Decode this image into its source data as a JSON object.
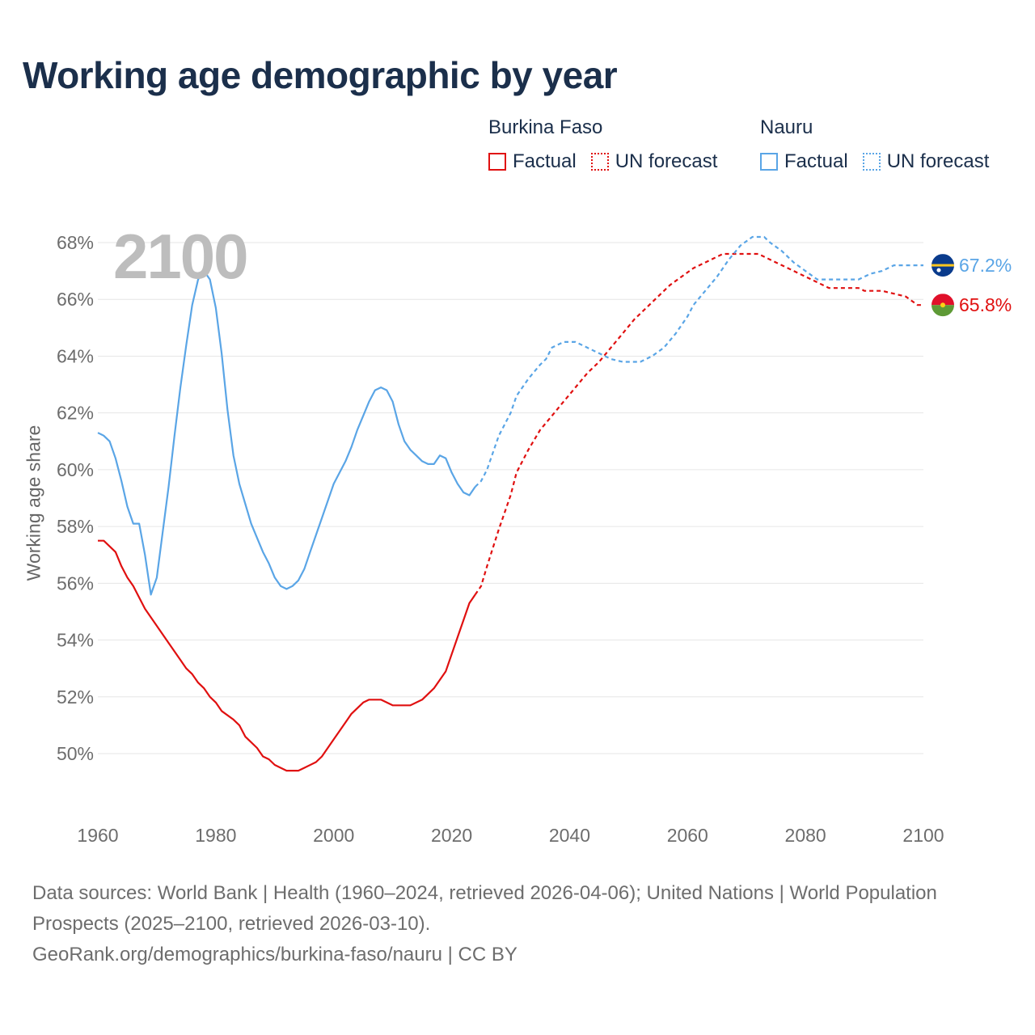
{
  "title": "Working age demographic by year",
  "legend": {
    "burkina": {
      "name": "Burkina Faso",
      "factual": "Factual",
      "forecast": "UN forecast"
    },
    "nauru": {
      "name": "Nauru",
      "factual": "Factual",
      "forecast": "UN forecast"
    }
  },
  "year_display": "2100",
  "footer": {
    "line1": "Data sources: World Bank | Health (1960–2024, retrieved 2026-04-06); United Nations | World Population Prospects (2025–2100, retrieved 2026-03-10).",
    "line2": "GeoRank.org/demographics/burkina-faso/nauru | CC BY"
  },
  "colors": {
    "burkina": "#e01010",
    "nauru": "#5aa5e6",
    "grid": "#e6e6e6"
  },
  "chart_data": {
    "type": "line",
    "title": "Working age demographic by year",
    "xlabel": "",
    "ylabel": "Working age share",
    "xlim": [
      1960,
      2100
    ],
    "ylim": [
      48,
      69
    ],
    "x_ticks": [
      1960,
      1980,
      2000,
      2020,
      2040,
      2060,
      2080,
      2100
    ],
    "y_ticks": [
      50,
      52,
      54,
      56,
      58,
      60,
      62,
      64,
      66,
      68
    ],
    "y_tick_labels": [
      "50%",
      "52%",
      "54%",
      "56%",
      "58%",
      "60%",
      "62%",
      "64%",
      "66%",
      "68%"
    ],
    "factual_end_year": 2024,
    "series": [
      {
        "name": "Burkina Faso",
        "color": "#e01010",
        "end_label": "65.8%",
        "points": [
          [
            1960,
            57.5
          ],
          [
            1961,
            57.5
          ],
          [
            1963,
            57.1
          ],
          [
            1964,
            56.6
          ],
          [
            1965,
            56.2
          ],
          [
            1966,
            55.9
          ],
          [
            1968,
            55.1
          ],
          [
            1970,
            54.5
          ],
          [
            1972,
            53.9
          ],
          [
            1974,
            53.3
          ],
          [
            1975,
            53.0
          ],
          [
            1976,
            52.8
          ],
          [
            1977,
            52.5
          ],
          [
            1978,
            52.3
          ],
          [
            1979,
            52.0
          ],
          [
            1980,
            51.8
          ],
          [
            1981,
            51.5
          ],
          [
            1983,
            51.2
          ],
          [
            1984,
            51.0
          ],
          [
            1985,
            50.6
          ],
          [
            1987,
            50.2
          ],
          [
            1988,
            49.9
          ],
          [
            1989,
            49.8
          ],
          [
            1990,
            49.6
          ],
          [
            1992,
            49.4
          ],
          [
            1994,
            49.4
          ],
          [
            1995,
            49.5
          ],
          [
            1997,
            49.7
          ],
          [
            1998,
            49.9
          ],
          [
            2000,
            50.5
          ],
          [
            2002,
            51.1
          ],
          [
            2003,
            51.4
          ],
          [
            2005,
            51.8
          ],
          [
            2006,
            51.9
          ],
          [
            2008,
            51.9
          ],
          [
            2010,
            51.7
          ],
          [
            2013,
            51.7
          ],
          [
            2015,
            51.9
          ],
          [
            2017,
            52.3
          ],
          [
            2019,
            52.9
          ],
          [
            2021,
            54.1
          ],
          [
            2022,
            54.7
          ],
          [
            2023,
            55.3
          ],
          [
            2024,
            55.6
          ],
          [
            2025,
            55.9
          ],
          [
            2026,
            56.6
          ],
          [
            2028,
            57.9
          ],
          [
            2030,
            59.1
          ],
          [
            2031,
            59.9
          ],
          [
            2033,
            60.7
          ],
          [
            2035,
            61.4
          ],
          [
            2037,
            61.9
          ],
          [
            2039,
            62.4
          ],
          [
            2041,
            62.9
          ],
          [
            2043,
            63.4
          ],
          [
            2045,
            63.8
          ],
          [
            2047,
            64.3
          ],
          [
            2049,
            64.8
          ],
          [
            2051,
            65.3
          ],
          [
            2053,
            65.7
          ],
          [
            2055,
            66.1
          ],
          [
            2057,
            66.5
          ],
          [
            2059,
            66.8
          ],
          [
            2061,
            67.1
          ],
          [
            2063,
            67.3
          ],
          [
            2066,
            67.6
          ],
          [
            2072,
            67.6
          ],
          [
            2075,
            67.3
          ],
          [
            2078,
            67.0
          ],
          [
            2081,
            66.7
          ],
          [
            2084,
            66.4
          ],
          [
            2089,
            66.4
          ],
          [
            2090,
            66.3
          ],
          [
            2093,
            66.3
          ],
          [
            2095,
            66.2
          ],
          [
            2097,
            66.1
          ],
          [
            2099,
            65.8
          ],
          [
            2100,
            65.8
          ]
        ]
      },
      {
        "name": "Nauru",
        "color": "#5aa5e6",
        "end_label": "67.2%",
        "points": [
          [
            1960,
            61.3
          ],
          [
            1961,
            61.2
          ],
          [
            1962,
            61.0
          ],
          [
            1963,
            60.4
          ],
          [
            1964,
            59.6
          ],
          [
            1965,
            58.7
          ],
          [
            1966,
            58.1
          ],
          [
            1967,
            58.1
          ],
          [
            1968,
            57.0
          ],
          [
            1969,
            55.6
          ],
          [
            1970,
            56.2
          ],
          [
            1971,
            57.8
          ],
          [
            1972,
            59.4
          ],
          [
            1973,
            61.2
          ],
          [
            1974,
            62.9
          ],
          [
            1975,
            64.4
          ],
          [
            1976,
            65.8
          ],
          [
            1977,
            66.7
          ],
          [
            1978,
            67.0
          ],
          [
            1979,
            66.7
          ],
          [
            1980,
            65.7
          ],
          [
            1981,
            64.1
          ],
          [
            1982,
            62.1
          ],
          [
            1983,
            60.5
          ],
          [
            1984,
            59.5
          ],
          [
            1985,
            58.8
          ],
          [
            1986,
            58.1
          ],
          [
            1987,
            57.6
          ],
          [
            1988,
            57.1
          ],
          [
            1989,
            56.7
          ],
          [
            1990,
            56.2
          ],
          [
            1991,
            55.9
          ],
          [
            1992,
            55.8
          ],
          [
            1993,
            55.9
          ],
          [
            1994,
            56.1
          ],
          [
            1995,
            56.5
          ],
          [
            1996,
            57.1
          ],
          [
            1997,
            57.7
          ],
          [
            1998,
            58.3
          ],
          [
            1999,
            58.9
          ],
          [
            2000,
            59.5
          ],
          [
            2001,
            59.9
          ],
          [
            2002,
            60.3
          ],
          [
            2003,
            60.8
          ],
          [
            2004,
            61.4
          ],
          [
            2005,
            61.9
          ],
          [
            2006,
            62.4
          ],
          [
            2007,
            62.8
          ],
          [
            2008,
            62.9
          ],
          [
            2009,
            62.8
          ],
          [
            2010,
            62.4
          ],
          [
            2011,
            61.6
          ],
          [
            2012,
            61.0
          ],
          [
            2013,
            60.7
          ],
          [
            2014,
            60.5
          ],
          [
            2015,
            60.3
          ],
          [
            2016,
            60.2
          ],
          [
            2017,
            60.2
          ],
          [
            2018,
            60.5
          ],
          [
            2019,
            60.4
          ],
          [
            2020,
            59.9
          ],
          [
            2021,
            59.5
          ],
          [
            2022,
            59.2
          ],
          [
            2023,
            59.1
          ],
          [
            2024,
            59.4
          ],
          [
            2025,
            59.6
          ],
          [
            2026,
            60.0
          ],
          [
            2027,
            60.6
          ],
          [
            2028,
            61.2
          ],
          [
            2030,
            62.0
          ],
          [
            2031,
            62.6
          ],
          [
            2033,
            63.2
          ],
          [
            2035,
            63.7
          ],
          [
            2036,
            63.9
          ],
          [
            2037,
            64.3
          ],
          [
            2039,
            64.5
          ],
          [
            2041,
            64.5
          ],
          [
            2043,
            64.3
          ],
          [
            2045,
            64.1
          ],
          [
            2047,
            63.9
          ],
          [
            2049,
            63.8
          ],
          [
            2052,
            63.8
          ],
          [
            2054,
            64.0
          ],
          [
            2056,
            64.3
          ],
          [
            2058,
            64.8
          ],
          [
            2060,
            65.4
          ],
          [
            2061,
            65.8
          ],
          [
            2063,
            66.3
          ],
          [
            2065,
            66.8
          ],
          [
            2067,
            67.4
          ],
          [
            2069,
            67.9
          ],
          [
            2071,
            68.2
          ],
          [
            2073,
            68.2
          ],
          [
            2074,
            68.0
          ],
          [
            2076,
            67.7
          ],
          [
            2078,
            67.3
          ],
          [
            2080,
            67.0
          ],
          [
            2082,
            66.7
          ],
          [
            2089,
            66.7
          ],
          [
            2091,
            66.9
          ],
          [
            2093,
            67.0
          ],
          [
            2095,
            67.2
          ],
          [
            2100,
            67.2
          ]
        ]
      }
    ]
  }
}
